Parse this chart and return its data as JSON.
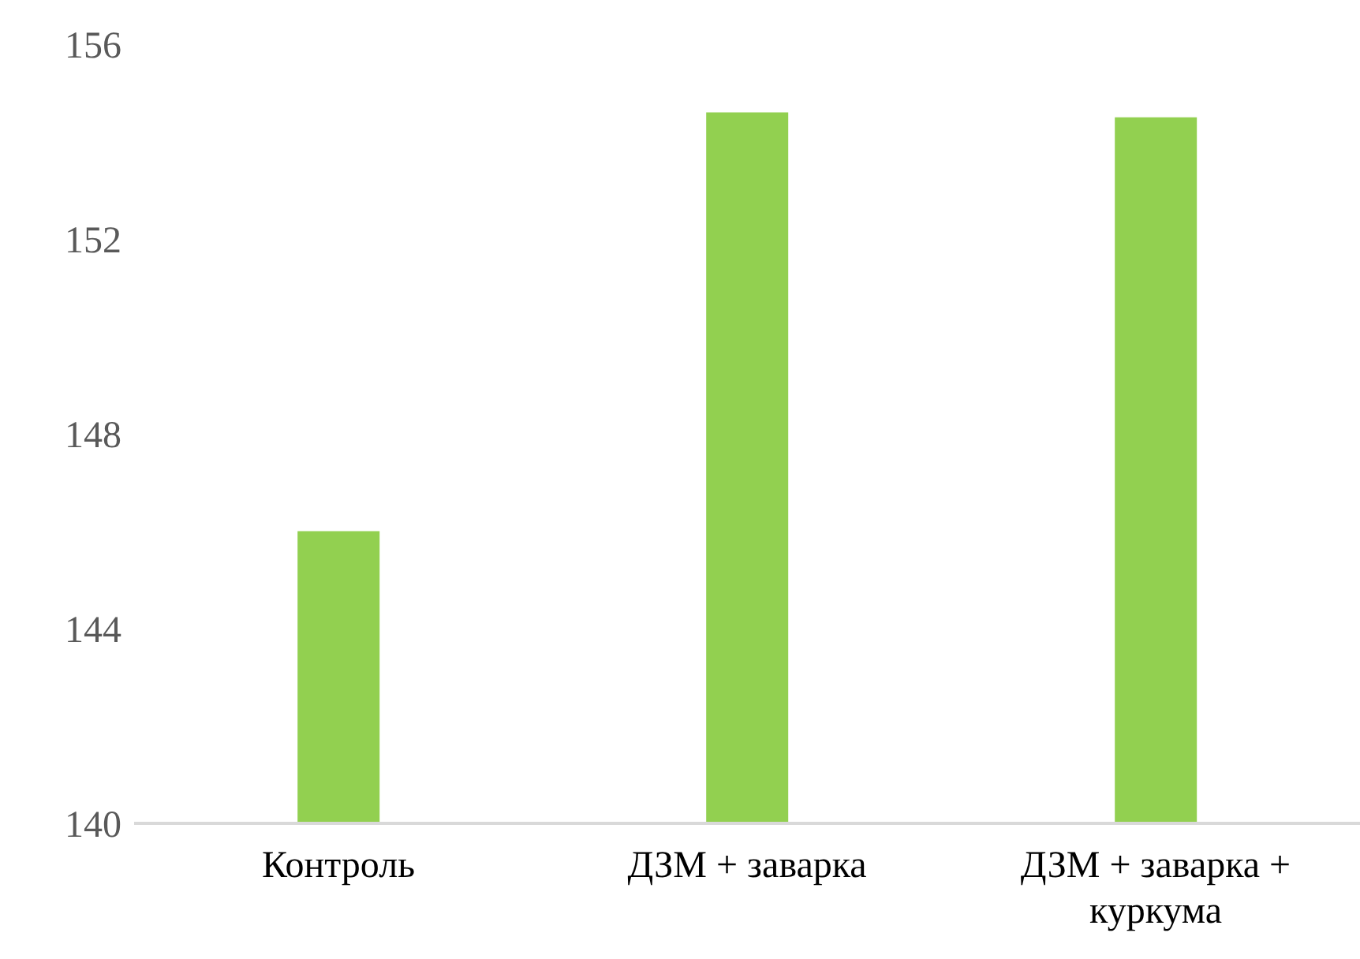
{
  "chart_data": {
    "type": "bar",
    "categories": [
      "Контроль",
      "ДЗМ + заварка",
      "ДЗМ + заварка + куркума"
    ],
    "values": [
      146.0,
      154.6,
      154.5
    ],
    "color": "#92d050",
    "ylim": [
      140,
      156
    ],
    "yticks": [
      140,
      144,
      148,
      152,
      156
    ],
    "grid": false
  }
}
